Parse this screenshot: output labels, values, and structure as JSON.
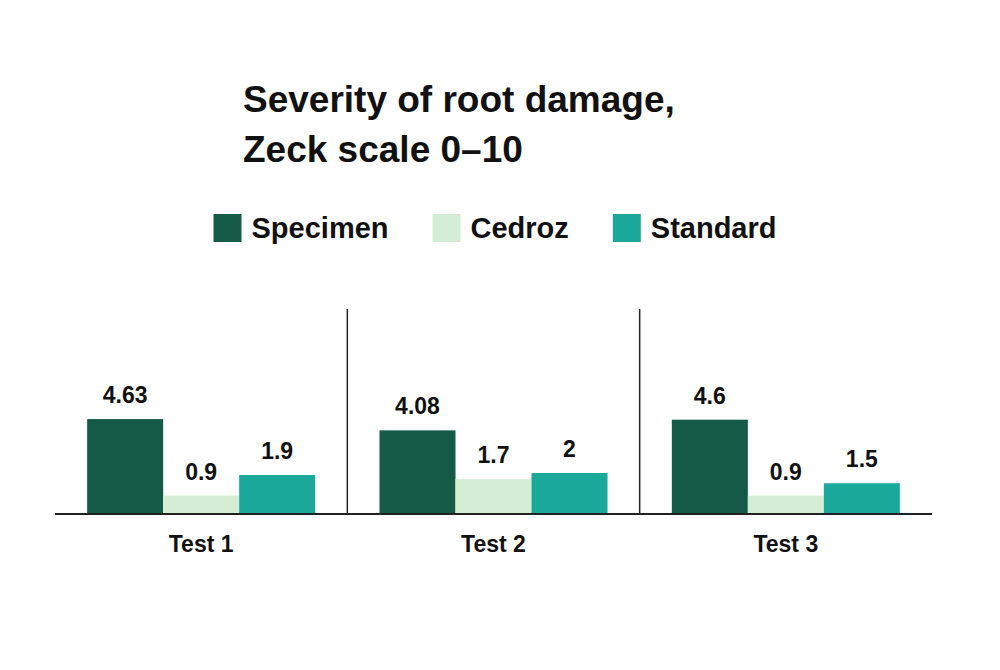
{
  "chart_data": {
    "type": "bar",
    "title": "Severity of root damage,\nZeck scale 0–10",
    "categories": [
      "Test 1",
      "Test 2",
      "Test 3"
    ],
    "series": [
      {
        "name": "Specimen",
        "color": "#155a47",
        "values": [
          4.63,
          4.08,
          4.6
        ]
      },
      {
        "name": "Cedroz",
        "color": "#d5edd5",
        "values": [
          0.9,
          1.7,
          0.9
        ]
      },
      {
        "name": "Standard",
        "color": "#1aa89b",
        "values": [
          1.9,
          2,
          1.5
        ]
      }
    ],
    "ylim": [
      0,
      10
    ],
    "grid": false,
    "legend": "top",
    "data_labels": true,
    "tick_labels": "x"
  }
}
